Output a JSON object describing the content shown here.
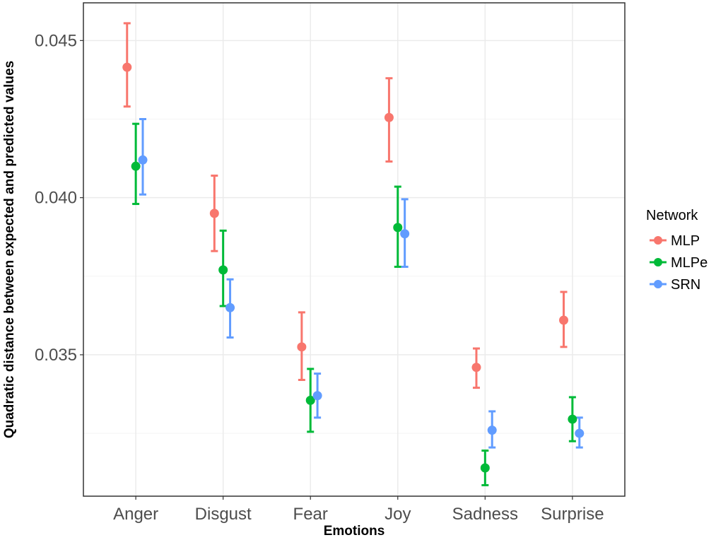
{
  "chart_data": {
    "type": "scatter",
    "subtype": "point-with-errorbars",
    "title": "",
    "xlabel": "Emotions",
    "ylabel": "Quadratic distance between expected and predicted values",
    "categories": [
      "Anger",
      "Disgust",
      "Fear",
      "Joy",
      "Sadness",
      "Surprise"
    ],
    "ylim": [
      0.0305,
      0.0462
    ],
    "yticks": [
      0.035,
      0.04,
      0.045
    ],
    "ytick_labels": [
      "0.035",
      "0.040",
      "0.045"
    ],
    "grid": true,
    "legend": {
      "title": "Network",
      "position": "right"
    },
    "series": [
      {
        "name": "MLP",
        "color": "#F8766D",
        "values": [
          0.04415,
          0.0395,
          0.03525,
          0.04255,
          0.0346,
          0.0361
        ],
        "lower": [
          0.0429,
          0.0383,
          0.0342,
          0.04115,
          0.03395,
          0.03525
        ],
        "upper": [
          0.04555,
          0.0407,
          0.03635,
          0.0438,
          0.0352,
          0.037
        ]
      },
      {
        "name": "MLPe",
        "color": "#00BA38",
        "values": [
          0.041,
          0.0377,
          0.03355,
          0.03905,
          0.0314,
          0.03295
        ],
        "lower": [
          0.0398,
          0.03655,
          0.03255,
          0.0378,
          0.03085,
          0.03225
        ],
        "upper": [
          0.04235,
          0.03895,
          0.03455,
          0.04035,
          0.03195,
          0.03365
        ]
      },
      {
        "name": "SRN",
        "color": "#619CFF",
        "values": [
          0.0412,
          0.0365,
          0.0337,
          0.03885,
          0.0326,
          0.0325
        ],
        "lower": [
          0.0401,
          0.03555,
          0.033,
          0.0378,
          0.03205,
          0.03205
        ],
        "upper": [
          0.0425,
          0.0374,
          0.0344,
          0.03995,
          0.0332,
          0.033
        ]
      }
    ]
  }
}
